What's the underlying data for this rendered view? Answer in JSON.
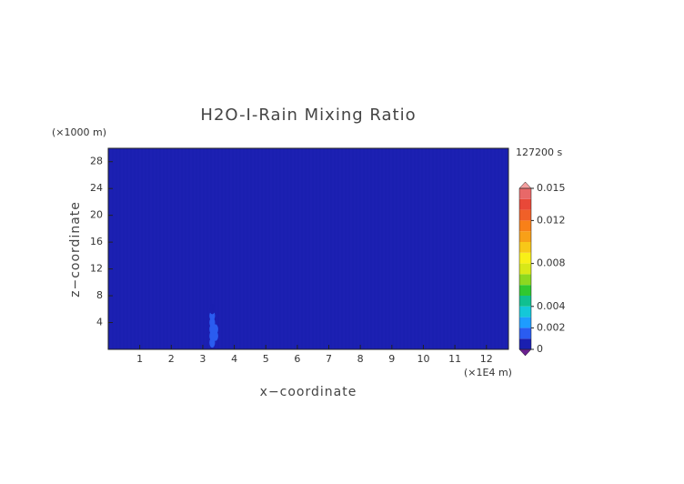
{
  "chart_data": {
    "type": "heatmap",
    "title": "H2O-I-Rain Mixing Ratio",
    "x_label": "x−coordinate",
    "y_label": "z−coordinate",
    "x_unit": "(×1E4 m)",
    "y_unit": "(×1000 m)",
    "time_label": "127200 s",
    "xlim": [
      0,
      12.7
    ],
    "ylim": [
      0,
      30
    ],
    "xticks": [
      1,
      2,
      3,
      4,
      5,
      6,
      7,
      8,
      9,
      10,
      11,
      12
    ],
    "yticks": [
      4,
      8,
      12,
      16,
      20,
      24,
      28
    ],
    "cells": {
      "x": [
        3.3,
        3.3,
        3.3,
        3.3,
        3.3,
        3.3,
        3.4,
        3.4
      ],
      "y": [
        1,
        2,
        3,
        4,
        5,
        6,
        2,
        3
      ],
      "values": [
        0.0012,
        0.0018,
        0.0016,
        0.0014,
        0.0012,
        0.0008,
        0.0011,
        0.001
      ]
    },
    "colorbar": {
      "levels": [
        0,
        0.001,
        0.002,
        0.003,
        0.004,
        0.005,
        0.006,
        0.007,
        0.008,
        0.009,
        0.01,
        0.011,
        0.012,
        0.013,
        0.014,
        0.015
      ],
      "colors": [
        "#1a1fb0",
        "#2a5cf0",
        "#1e9cff",
        "#14c8d8",
        "#10c090",
        "#30c830",
        "#8cd820",
        "#d8e818",
        "#f8f018",
        "#f8c818",
        "#f8a018",
        "#f88018",
        "#f06028",
        "#e84838",
        "#e86868"
      ],
      "under_color": "#6a2090",
      "over_color": "#f4a0a0",
      "ticks": [
        0,
        0.002,
        0.004,
        0.008,
        0.012,
        0.015
      ]
    }
  }
}
